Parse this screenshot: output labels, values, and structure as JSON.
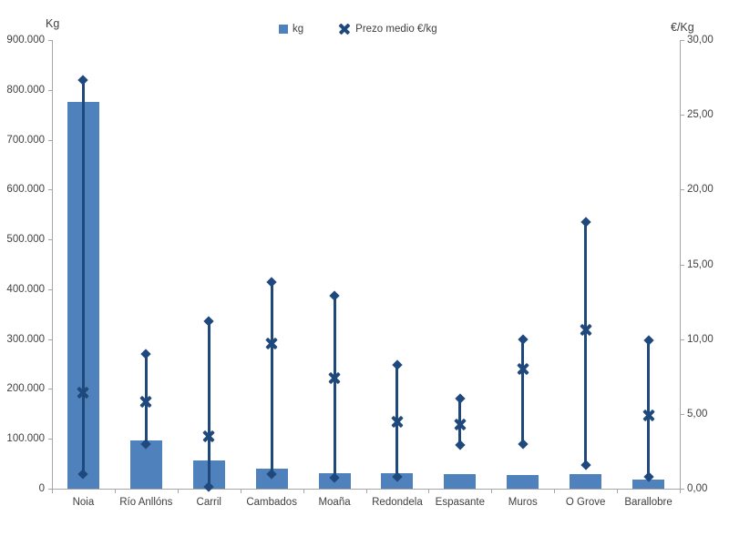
{
  "chart_data": {
    "type": "bar",
    "title": "",
    "categories": [
      "Noia",
      "Río Anllóns",
      "Carril",
      "Cambados",
      "Moaña",
      "Redondela",
      "Espasante",
      "Muros",
      "O Grove",
      "Barallobre"
    ],
    "series": [
      {
        "name": "kg",
        "type": "bar",
        "axis": "left",
        "values": [
          775000,
          97000,
          57000,
          41000,
          31000,
          31000,
          30000,
          27000,
          29000,
          18000
        ]
      },
      {
        "name": "Prezo medio €/kg",
        "type": "scatter-x-with-hilo-range",
        "axis": "right",
        "values": [
          6.4,
          5.8,
          3.5,
          9.7,
          7.4,
          4.5,
          4.3,
          8.0,
          10.6,
          4.9
        ],
        "range_max": [
          27.3,
          9.0,
          11.2,
          13.8,
          12.9,
          8.3,
          6.0,
          10.0,
          17.8,
          9.9
        ],
        "range_min": [
          1.0,
          3.0,
          0.1,
          1.0,
          0.7,
          0.8,
          2.9,
          3.0,
          1.6,
          0.8
        ]
      }
    ],
    "left_axis": {
      "label": "Kg",
      "min": 0,
      "max": 900000,
      "step": 100000,
      "tick_labels": [
        "0",
        "100.000",
        "200.000",
        "300.000",
        "400.000",
        "500.000",
        "600.000",
        "700.000",
        "800.000",
        "900.000"
      ]
    },
    "right_axis": {
      "label": "€/Kg",
      "min": 0,
      "max": 30,
      "step": 5,
      "tick_labels": [
        "0,00",
        "5,00",
        "10,00",
        "15,00",
        "20,00",
        "25,00",
        "30,00"
      ]
    },
    "legend": [
      {
        "label": "kg",
        "marker": "square"
      },
      {
        "label": "Prezo medio €/kg",
        "marker": "x"
      }
    ],
    "grid": "off",
    "legend_position": "top-center",
    "colors": {
      "bar": "#4f81bd",
      "marker": "#1f497d",
      "axis_line": "#a6a6a6",
      "text": "#3f3f3f",
      "background": "#ffffff"
    }
  }
}
